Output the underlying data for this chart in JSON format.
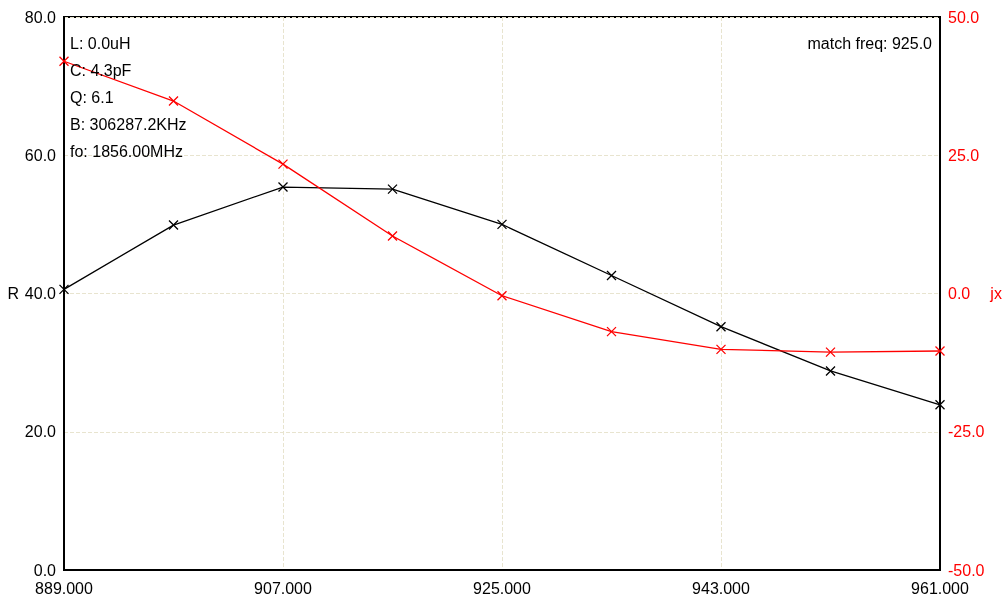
{
  "chart_data": {
    "type": "line",
    "ylabel": "R",
    "y2label": "jx",
    "x": [
      889,
      898,
      907,
      916,
      925,
      934,
      943,
      952,
      961
    ],
    "series": [
      {
        "color": "#000000",
        "values": [
          40.6,
          49.9,
          55.4,
          55.1,
          50.0,
          42.6,
          35.2,
          28.8,
          23.9
        ]
      },
      {
        "color": "#ff0000",
        "axis": "y2",
        "values": [
          42.0,
          34.8,
          23.4,
          10.4,
          -0.4,
          -6.9,
          -10.1,
          -10.6,
          -10.4
        ]
      }
    ],
    "xlim": [
      889,
      961
    ],
    "xticks": [
      {
        "value": 889,
        "label": "889.000"
      },
      {
        "value": 907,
        "label": "907.000"
      },
      {
        "value": 925,
        "label": "925.000"
      },
      {
        "value": 943,
        "label": "943.000"
      },
      {
        "value": 961,
        "label": "961.000"
      }
    ],
    "ylim": [
      0,
      80
    ],
    "yticks": [
      {
        "value": 0,
        "label": "0.0"
      },
      {
        "value": 20,
        "label": "20.0"
      },
      {
        "value": 40,
        "label": "40.0"
      },
      {
        "value": 60,
        "label": "60.0"
      },
      {
        "value": 80,
        "label": "80.0"
      }
    ],
    "y2lim": [
      -50,
      50
    ],
    "y2ticks": [
      {
        "value": -50,
        "label": "-50.0"
      },
      {
        "value": -25,
        "label": "-25.0"
      },
      {
        "value": 0,
        "label": "0.0"
      },
      {
        "value": 25,
        "label": "25.0"
      },
      {
        "value": 50,
        "label": "50.0"
      }
    ],
    "annotations": [
      "L: 0.0uH",
      "C: 4.3pF",
      "Q: 6.1",
      "B: 306287.2KHz",
      "fo: 1856.00MHz",
      "match freq: 925.0"
    ],
    "grid": true,
    "marker": "cross",
    "line_style": "solid"
  }
}
